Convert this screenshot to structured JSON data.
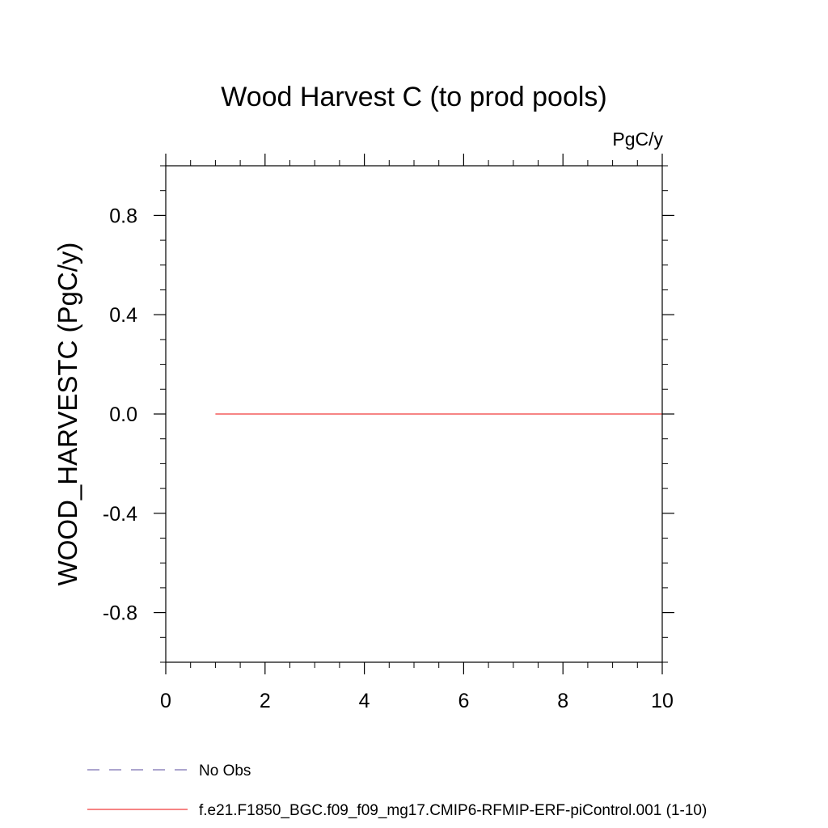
{
  "chart_data": {
    "type": "line",
    "title": "Wood Harvest C (to prod pools)",
    "units_label": "PgC/y",
    "xlabel": "",
    "ylabel": "WOOD_HARVESTC  (PgC/y)",
    "xlim": [
      0,
      10
    ],
    "ylim": [
      -1,
      1
    ],
    "x_ticks": [
      0,
      2,
      4,
      6,
      8,
      10
    ],
    "x_tick_labels": [
      "0",
      "2",
      "4",
      "6",
      "8",
      "10"
    ],
    "y_ticks": [
      -0.8,
      -0.4,
      0.0,
      0.4,
      0.8
    ],
    "y_tick_labels": [
      "-0.8",
      "-0.4",
      "0.0",
      "0.4",
      "0.8"
    ],
    "x_minor_step": 0.5,
    "y_minor_step": 0.1,
    "grid": false,
    "legend_position": "bottom-left, below plot",
    "series": [
      {
        "name": "No Obs",
        "color": "#7a6fb0",
        "dash": "dashed",
        "x": [],
        "y": []
      },
      {
        "name": "f.e21.F1850_BGC.f09_f09_mg17.CMIP6-RFMIP-ERF-piControl.001 (1-10)",
        "color": "#f03a3a",
        "dash": "solid",
        "x": [
          1,
          2,
          3,
          4,
          5,
          6,
          7,
          8,
          9,
          10
        ],
        "y": [
          0,
          0,
          0,
          0,
          0,
          0,
          0,
          0,
          0,
          0
        ]
      }
    ]
  }
}
